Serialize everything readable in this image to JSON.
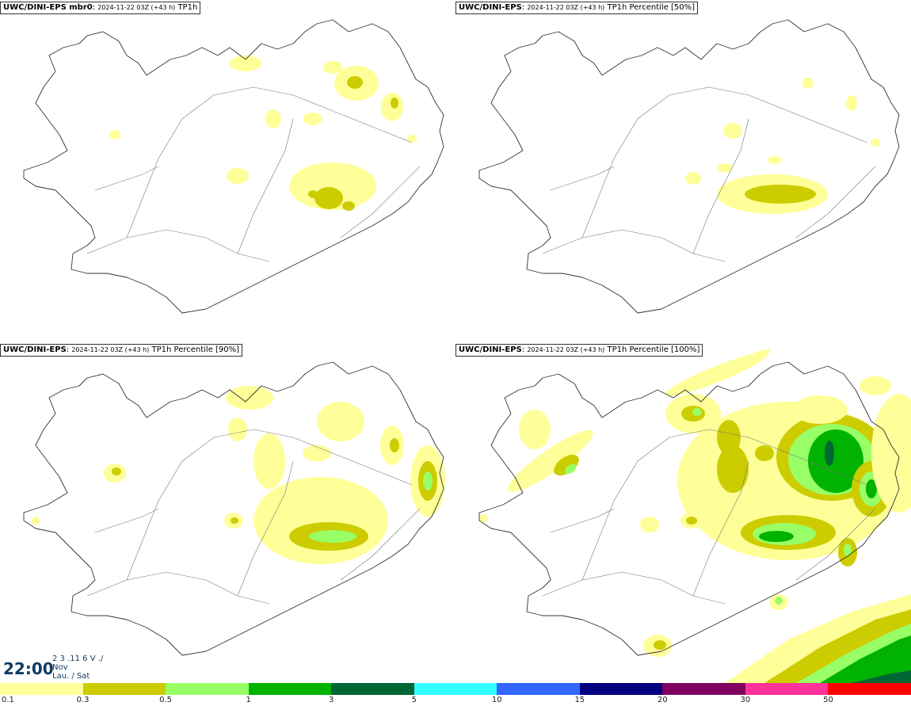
{
  "panels": [
    {
      "model": "UWC/DINI-EPS mbr0",
      "meta": "2024-11-22 03Z (+43 h)",
      "field": "TP1h",
      "level": 0
    },
    {
      "model": "UWC/DINI-EPS",
      "meta": "2024-11-22 03Z (+43 h)",
      "field": "TP1h Percentile [50%]",
      "level": 1
    },
    {
      "model": "UWC/DINI-EPS",
      "meta": "2024-11-22 03Z (+43 h)",
      "field": "TP1h Percentile [90%]",
      "level": 2
    },
    {
      "model": "UWC/DINI-EPS",
      "meta": "2024-11-22 03Z (+43 h)",
      "field": "TP1h Percentile [100%]",
      "level": 3
    }
  ],
  "valid_time": {
    "time": "22:00",
    "day_line": "2 3 .11 6 V ./",
    "month": "Nov",
    "weekday": "Lau. / Sat"
  },
  "legend": {
    "colors": [
      "#ffff99",
      "#cccc00",
      "#99ff66",
      "#00b300",
      "#006633",
      "#33ffff",
      "#3366ff",
      "#000080",
      "#800060",
      "#ff3399",
      "#ff0000"
    ],
    "ticks": [
      "0.1",
      "0.3",
      "0.5",
      "1",
      "3",
      "5",
      "10",
      "15",
      "20",
      "30",
      "50"
    ]
  }
}
